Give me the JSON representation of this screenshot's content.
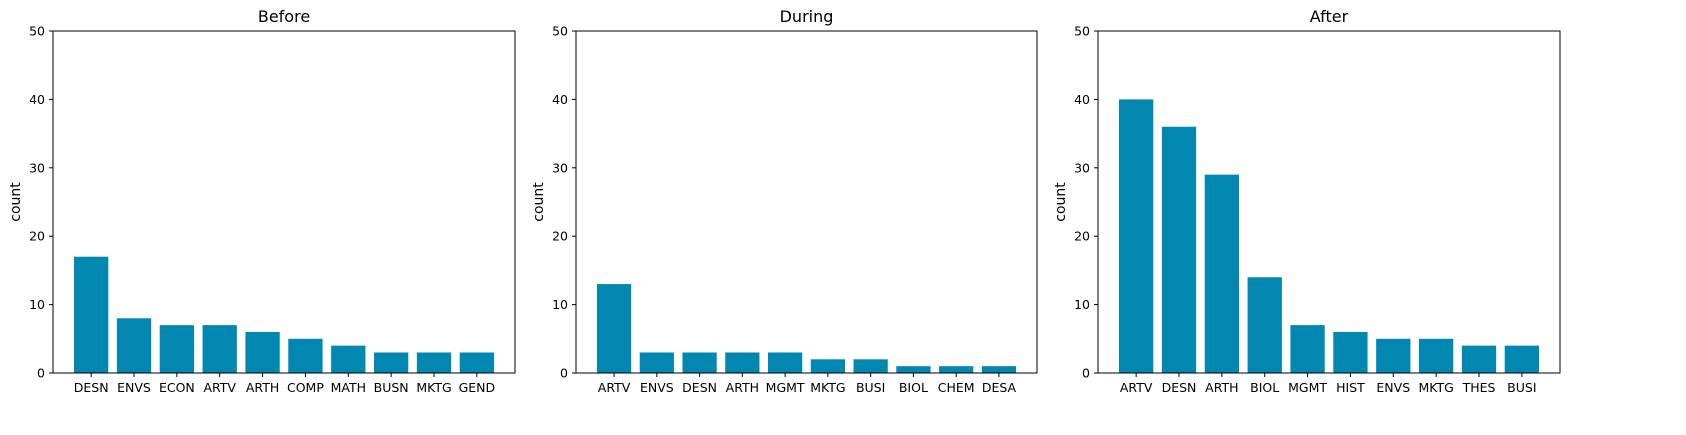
{
  "colors": {
    "bar": "#0288b0",
    "axis": "#000000",
    "background": "#ffffff"
  },
  "chart_data": [
    {
      "type": "bar",
      "title": "Before",
      "ylabel": "count",
      "xlabel": "",
      "ylim": [
        0,
        50
      ],
      "yticks": [
        0,
        10,
        20,
        30,
        40,
        50
      ],
      "grid": false,
      "categories": [
        "DESN",
        "ENVS",
        "ECON",
        "ARTV",
        "ARTH",
        "COMP",
        "MATH",
        "BUSN",
        "MKTG",
        "GEND"
      ],
      "values": [
        17,
        8,
        7,
        7,
        6,
        5,
        4,
        3,
        3,
        3
      ]
    },
    {
      "type": "bar",
      "title": "During",
      "ylabel": "count",
      "xlabel": "",
      "ylim": [
        0,
        50
      ],
      "yticks": [
        0,
        10,
        20,
        30,
        40,
        50
      ],
      "grid": false,
      "categories": [
        "ARTV",
        "ENVS",
        "DESN",
        "ARTH",
        "MGMT",
        "MKTG",
        "BUSI",
        "BIOL",
        "CHEM",
        "DESA"
      ],
      "values": [
        13,
        3,
        3,
        3,
        3,
        2,
        2,
        1,
        1,
        1
      ]
    },
    {
      "type": "bar",
      "title": "After",
      "ylabel": "count",
      "xlabel": "",
      "ylim": [
        0,
        50
      ],
      "yticks": [
        0,
        10,
        20,
        30,
        40,
        50
      ],
      "grid": false,
      "categories": [
        "ARTV",
        "DESN",
        "ARTH",
        "BIOL",
        "MGMT",
        "HIST",
        "ENVS",
        "MKTG",
        "THES",
        "BUSI"
      ],
      "values": [
        40,
        36,
        29,
        14,
        7,
        6,
        5,
        5,
        4,
        4
      ]
    }
  ]
}
